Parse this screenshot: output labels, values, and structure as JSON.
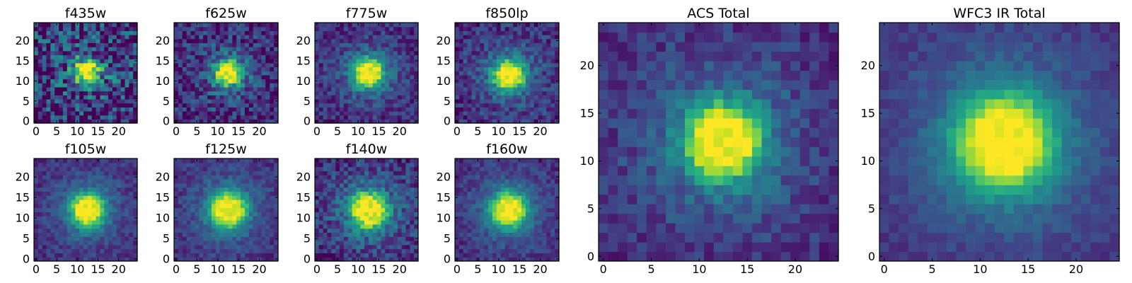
{
  "chart_data": [
    {
      "type": "heatmap",
      "title": "f435w",
      "colormap": "viridis",
      "grid_size": 25,
      "peak": [
        12.5,
        12.5
      ],
      "spread": 1.9,
      "noise": 0.34,
      "seed": 11,
      "xticks": [
        "0",
        "5",
        "10",
        "15",
        "20"
      ],
      "yticks": [
        "0",
        "5",
        "10",
        "15",
        "20"
      ],
      "xlim": [
        0,
        24
      ],
      "ylim": [
        0,
        24
      ]
    },
    {
      "type": "heatmap",
      "title": "f625w",
      "colormap": "viridis",
      "grid_size": 25,
      "peak": [
        12.5,
        12
      ],
      "spread": 2.0,
      "noise": 0.2,
      "seed": 23,
      "xticks": [
        "0",
        "5",
        "10",
        "15",
        "20"
      ],
      "yticks": [
        "0",
        "5",
        "10",
        "15",
        "20"
      ],
      "xlim": [
        0,
        24
      ],
      "ylim": [
        0,
        24
      ]
    },
    {
      "type": "heatmap",
      "title": "f775w",
      "colormap": "viridis",
      "grid_size": 25,
      "peak": [
        12.5,
        12
      ],
      "spread": 2.3,
      "noise": 0.14,
      "seed": 37,
      "xticks": [
        "0",
        "5",
        "10",
        "15",
        "20"
      ],
      "yticks": [
        "0",
        "5",
        "10",
        "15",
        "20"
      ],
      "xlim": [
        0,
        24
      ],
      "ylim": [
        0,
        24
      ]
    },
    {
      "type": "heatmap",
      "title": "f850lp",
      "colormap": "viridis",
      "grid_size": 25,
      "peak": [
        12.5,
        11.5
      ],
      "spread": 2.4,
      "noise": 0.15,
      "seed": 41,
      "xticks": [
        "0",
        "5",
        "10",
        "15",
        "20"
      ],
      "yticks": [
        "0",
        "5",
        "10",
        "15",
        "20"
      ],
      "xlim": [
        0,
        24
      ],
      "ylim": [
        0,
        24
      ]
    },
    {
      "type": "heatmap",
      "title": "ACS Total",
      "colormap": "viridis",
      "grid_size": 25,
      "peak": [
        12.5,
        12
      ],
      "spread": 2.6,
      "noise": 0.11,
      "seed": 53,
      "xticks": [
        "0",
        "5",
        "10",
        "15",
        "20"
      ],
      "yticks": [
        "0",
        "5",
        "10",
        "15",
        "20"
      ],
      "xlim": [
        0,
        24
      ],
      "ylim": [
        0,
        24
      ]
    },
    {
      "type": "heatmap",
      "title": "WFC3 IR Total",
      "colormap": "viridis",
      "grid_size": 25,
      "peak": [
        12.5,
        12
      ],
      "spread": 3.3,
      "noise": 0.06,
      "seed": 67,
      "xticks": [
        "0",
        "5",
        "10",
        "15",
        "20"
      ],
      "yticks": [
        "0",
        "5",
        "10",
        "15",
        "20"
      ],
      "xlim": [
        0,
        24
      ],
      "ylim": [
        0,
        24
      ]
    },
    {
      "type": "heatmap",
      "title": "f105w",
      "colormap": "viridis",
      "grid_size": 25,
      "peak": [
        12.5,
        12
      ],
      "spread": 2.6,
      "noise": 0.1,
      "seed": 71,
      "xticks": [
        "0",
        "5",
        "10",
        "15",
        "20"
      ],
      "yticks": [
        "0",
        "5",
        "10",
        "15",
        "20"
      ],
      "xlim": [
        0,
        24
      ],
      "ylim": [
        0,
        24
      ]
    },
    {
      "type": "heatmap",
      "title": "f125w",
      "colormap": "viridis",
      "grid_size": 25,
      "peak": [
        12.5,
        12
      ],
      "spread": 2.8,
      "noise": 0.1,
      "seed": 83,
      "xticks": [
        "0",
        "5",
        "10",
        "15",
        "20"
      ],
      "yticks": [
        "0",
        "5",
        "10",
        "15",
        "20"
      ],
      "xlim": [
        0,
        24
      ],
      "ylim": [
        0,
        24
      ]
    },
    {
      "type": "heatmap",
      "title": "f140w",
      "colormap": "viridis",
      "grid_size": 25,
      "peak": [
        12.5,
        12
      ],
      "spread": 2.8,
      "noise": 0.16,
      "seed": 97,
      "xticks": [
        "0",
        "5",
        "10",
        "15",
        "20"
      ],
      "yticks": [
        "0",
        "5",
        "10",
        "15",
        "20"
      ],
      "xlim": [
        0,
        24
      ],
      "ylim": [
        0,
        24
      ]
    },
    {
      "type": "heatmap",
      "title": "f160w",
      "colormap": "viridis",
      "grid_size": 25,
      "peak": [
        12.5,
        12
      ],
      "spread": 2.7,
      "noise": 0.1,
      "seed": 101,
      "xticks": [
        "0",
        "5",
        "10",
        "15",
        "20"
      ],
      "yticks": [
        "0",
        "5",
        "10",
        "15",
        "20"
      ],
      "xlim": [
        0,
        24
      ],
      "ylim": [
        0,
        24
      ]
    }
  ]
}
